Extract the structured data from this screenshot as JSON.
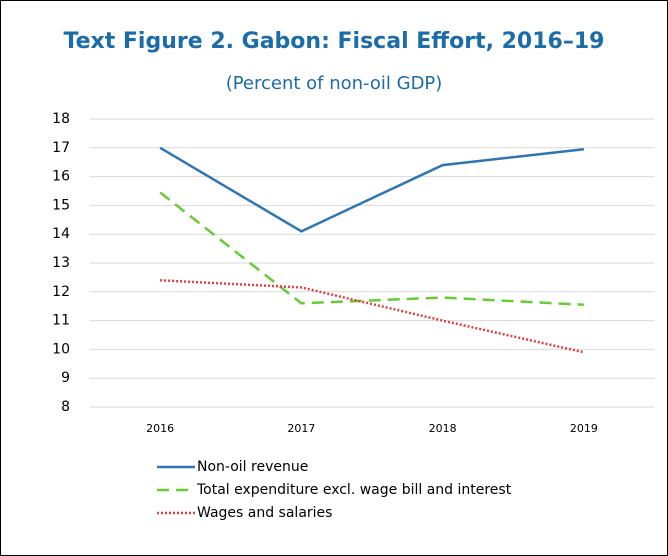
{
  "chart_data": {
    "type": "line",
    "title": "Text Figure 2. Gabon: Fiscal Effort, 2016–19",
    "subtitle": "(Percent of non-oil GDP)",
    "categories": [
      "2016",
      "2017",
      "2018",
      "2019"
    ],
    "series": [
      {
        "name": "Non-oil revenue",
        "color": "#2e75b6",
        "style": "solid",
        "values": [
          17.0,
          14.1,
          16.4,
          16.95
        ]
      },
      {
        "name": "Total expenditure excl. wage bill and interest",
        "color": "#66cc33",
        "style": "dashed",
        "values": [
          15.45,
          11.6,
          11.8,
          11.55
        ]
      },
      {
        "name": "Wages and salaries",
        "color": "#e04040",
        "style": "dotted",
        "values": [
          12.4,
          12.15,
          11.0,
          9.9
        ]
      }
    ],
    "ylim": [
      8,
      18
    ],
    "yticks": [
      8,
      9,
      10,
      11,
      12,
      13,
      14,
      15,
      16,
      17,
      18
    ],
    "grid": true
  }
}
